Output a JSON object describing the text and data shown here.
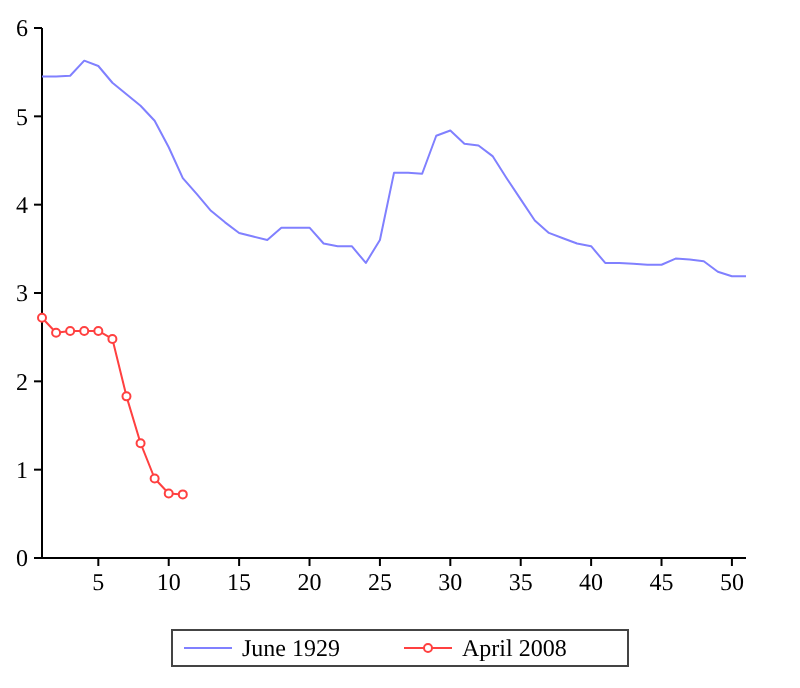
{
  "chart_data": {
    "type": "line",
    "x": [
      1,
      2,
      3,
      4,
      5,
      6,
      7,
      8,
      9,
      10,
      11,
      12,
      13,
      14,
      15,
      16,
      17,
      18,
      19,
      20,
      21,
      22,
      23,
      24,
      25,
      26,
      27,
      28,
      29,
      30,
      31,
      32,
      33,
      34,
      35,
      36,
      37,
      38,
      39,
      40,
      41,
      42,
      43,
      44,
      45,
      46,
      47,
      48,
      49,
      50,
      51
    ],
    "series": [
      {
        "name": "June 1929",
        "color": "#8080ff",
        "marker": "none",
        "values": [
          5.45,
          5.45,
          5.46,
          5.63,
          5.57,
          5.38,
          5.25,
          5.12,
          4.95,
          4.65,
          4.3,
          4.12,
          3.93,
          3.8,
          3.68,
          3.64,
          3.6,
          3.74,
          3.74,
          3.74,
          3.56,
          3.53,
          3.53,
          3.34,
          3.6,
          4.36,
          4.36,
          4.35,
          4.78,
          4.84,
          4.69,
          4.67,
          4.55,
          4.3,
          4.06,
          3.82,
          3.68,
          3.62,
          3.56,
          3.53,
          3.34,
          3.34,
          3.33,
          3.32,
          3.32,
          3.39,
          3.38,
          3.36,
          3.24,
          3.19,
          3.19
        ]
      },
      {
        "name": "April 2008",
        "color": "#ff4040",
        "marker": "circle",
        "x": [
          1,
          2,
          3,
          4,
          5,
          6,
          7,
          8,
          9,
          10,
          11
        ],
        "values": [
          2.72,
          2.55,
          2.57,
          2.57,
          2.57,
          2.48,
          1.83,
          1.3,
          0.9,
          0.73,
          0.72
        ]
      }
    ],
    "xlim": [
      1,
      51
    ],
    "xticks": [
      5,
      10,
      15,
      20,
      25,
      30,
      35,
      40,
      45,
      50
    ],
    "ylim": [
      0,
      6
    ],
    "yticks": [
      0,
      1,
      2,
      3,
      4,
      5,
      6
    ],
    "grid": false,
    "legend": "bottom",
    "line_style": "solid"
  }
}
